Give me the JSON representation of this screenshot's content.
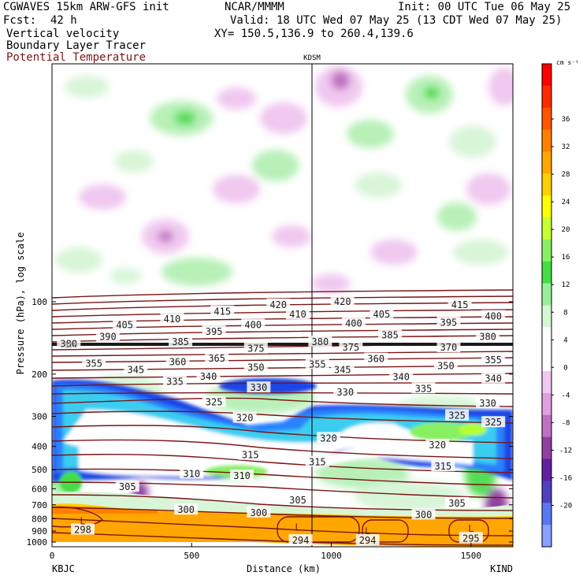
{
  "header": {
    "model": "CGWAVES 15km ARW-GFS init",
    "org": "NCAR/MMMM",
    "init": "Init: 00 UTC Tue 06 May 25",
    "fcst_label": "Fcst:",
    "fcst_value": "42 h",
    "valid": "Valid: 18 UTC Wed 07 May 25 (13 CDT Wed 07 May 25)",
    "field1": "Vertical velocity",
    "field2": "Boundary Layer Tracer",
    "field3": "Potential Temperature",
    "xy": "XY= 150.5,136.9 to 260.4,139.6",
    "field3_color": "#7a1515"
  },
  "chart_data": {
    "type": "heatmap",
    "title": "KDSM",
    "xlabel": "Distance (km)",
    "ylabel": "Pressure (hPa), log scale",
    "xlim": [
      0,
      1650
    ],
    "x_ticks": [
      "0",
      "500",
      "1000",
      "1500"
    ],
    "x_tick_values": [
      0,
      500,
      1000,
      1500
    ],
    "y_scale": "log",
    "y_ticks": [
      "100",
      "200",
      "300",
      "400",
      "500",
      "600",
      "700",
      "800",
      "900",
      "1000"
    ],
    "y_tick_values": [
      100,
      200,
      300,
      400,
      500,
      600,
      700,
      800,
      900,
      1000
    ],
    "left_station": "KBJC",
    "right_station": "KIND",
    "marker_station_km": 930,
    "colorbar": {
      "unit": "cm s⁻¹",
      "labels": [
        "36",
        "32",
        "28",
        "24",
        "20",
        "16",
        "12",
        "8",
        "4",
        "0",
        "-4",
        "-8",
        "-12",
        "-16",
        "-20"
      ],
      "colors": [
        "#ff0000",
        "#ff2a00",
        "#ff5500",
        "#ff8000",
        "#ffa600",
        "#ffd000",
        "#ffff00",
        "#c8ff32",
        "#88f060",
        "#44dd44",
        "#98f098",
        "#d4f8d4",
        "#ffffff",
        "#ffffff",
        "#f0c8f0",
        "#e0a0e0",
        "#c070c0",
        "#9040a0",
        "#6020a0",
        "#5040c0",
        "#5878f0",
        "#88a0ff"
      ]
    },
    "theta_labels": [
      {
        "text": "420",
        "x": 810,
        "p": 103
      },
      {
        "text": "420",
        "x": 1040,
        "p": 100
      },
      {
        "text": "415",
        "x": 610,
        "p": 110
      },
      {
        "text": "415",
        "x": 1460,
        "p": 103
      },
      {
        "text": "410",
        "x": 430,
        "p": 118
      },
      {
        "text": "410",
        "x": 880,
        "p": 113
      },
      {
        "text": "405",
        "x": 260,
        "p": 125
      },
      {
        "text": "405",
        "x": 1180,
        "p": 113
      },
      {
        "text": "400",
        "x": 720,
        "p": 125
      },
      {
        "text": "400",
        "x": 1080,
        "p": 123
      },
      {
        "text": "400",
        "x": 1580,
        "p": 115
      },
      {
        "text": "395",
        "x": 580,
        "p": 133
      },
      {
        "text": "395",
        "x": 1420,
        "p": 122
      },
      {
        "text": "390",
        "x": 200,
        "p": 140
      },
      {
        "text": "385",
        "x": 460,
        "p": 147
      },
      {
        "text": "385",
        "x": 1210,
        "p": 138
      },
      {
        "text": "380",
        "x": 60,
        "p": 150
      },
      {
        "text": "380",
        "x": 960,
        "p": 147
      },
      {
        "text": "380",
        "x": 1560,
        "p": 140
      },
      {
        "text": "375",
        "x": 730,
        "p": 157
      },
      {
        "text": "375",
        "x": 1070,
        "p": 155
      },
      {
        "text": "370",
        "x": 1420,
        "p": 155
      },
      {
        "text": "360",
        "x": 450,
        "p": 178
      },
      {
        "text": "360",
        "x": 1160,
        "p": 173
      },
      {
        "text": "365",
        "x": 590,
        "p": 172
      },
      {
        "text": "355",
        "x": 150,
        "p": 181
      },
      {
        "text": "355",
        "x": 950,
        "p": 182
      },
      {
        "text": "355",
        "x": 1580,
        "p": 175
      },
      {
        "text": "350",
        "x": 730,
        "p": 188
      },
      {
        "text": "350",
        "x": 1410,
        "p": 185
      },
      {
        "text": "345",
        "x": 300,
        "p": 192
      },
      {
        "text": "345",
        "x": 1040,
        "p": 192
      },
      {
        "text": "340",
        "x": 560,
        "p": 205
      },
      {
        "text": "340",
        "x": 1250,
        "p": 206
      },
      {
        "text": "340",
        "x": 1580,
        "p": 209
      },
      {
        "text": "335",
        "x": 440,
        "p": 215
      },
      {
        "text": "335",
        "x": 1330,
        "p": 230
      },
      {
        "text": "330",
        "x": 740,
        "p": 228
      },
      {
        "text": "330",
        "x": 1050,
        "p": 238
      },
      {
        "text": "330",
        "x": 1560,
        "p": 265
      },
      {
        "text": "325",
        "x": 580,
        "p": 262
      },
      {
        "text": "325",
        "x": 1450,
        "p": 298
      },
      {
        "text": "325",
        "x": 1580,
        "p": 318
      },
      {
        "text": "320",
        "x": 690,
        "p": 305
      },
      {
        "text": "320",
        "x": 990,
        "p": 370
      },
      {
        "text": "320",
        "x": 1380,
        "p": 395
      },
      {
        "text": "315",
        "x": 710,
        "p": 435
      },
      {
        "text": "315",
        "x": 950,
        "p": 465
      },
      {
        "text": "315",
        "x": 1400,
        "p": 485
      },
      {
        "text": "310",
        "x": 500,
        "p": 520
      },
      {
        "text": "310",
        "x": 680,
        "p": 530
      },
      {
        "text": "305",
        "x": 270,
        "p": 590
      },
      {
        "text": "305",
        "x": 880,
        "p": 670
      },
      {
        "text": "305",
        "x": 1450,
        "p": 690
      },
      {
        "text": "300",
        "x": 480,
        "p": 735
      },
      {
        "text": "300",
        "x": 740,
        "p": 755
      },
      {
        "text": "300",
        "x": 1330,
        "p": 770
      },
      {
        "text": "298",
        "x": 110,
        "p": 890
      },
      {
        "text": "294",
        "x": 890,
        "p": 985
      },
      {
        "text": "294",
        "x": 1130,
        "p": 985
      },
      {
        "text": "295",
        "x": 1500,
        "p": 965
      }
    ],
    "low_labels": [
      {
        "text": "L",
        "x": 110,
        "p": 820
      },
      {
        "text": "L",
        "x": 880,
        "p": 870
      },
      {
        "text": "L",
        "x": 1130,
        "p": 900
      },
      {
        "text": "L",
        "x": 1500,
        "p": 880
      }
    ],
    "blt_label": "150"
  }
}
